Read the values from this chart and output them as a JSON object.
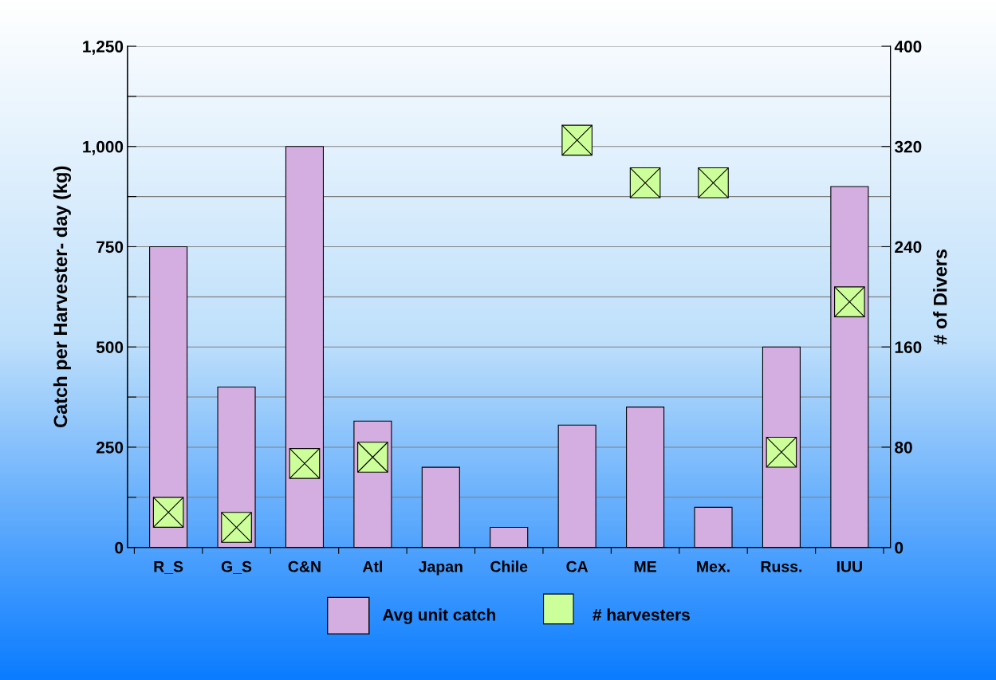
{
  "chart_data": {
    "type": "bar",
    "ylabel": "Catch per Harvester- day (kg)",
    "y2label": "# of Divers",
    "categories": [
      "R_S",
      "G_S",
      "C&N",
      "Atl",
      "Japan",
      "Chile",
      "CA",
      "ME",
      "Mex.",
      "Russ.",
      "IUU"
    ],
    "series": [
      {
        "name": "Avg unit catch",
        "color": "#d4aee0",
        "values": [
          750,
          400,
          1000,
          315,
          200,
          50,
          305,
          350,
          100,
          500,
          900
        ]
      },
      {
        "name": "# harvesters",
        "type": "scatter",
        "axis": "y2",
        "marker": "square",
        "color": "#ccff99",
        "values": [
          28,
          16,
          67,
          72,
          null,
          null,
          325,
          291,
          291,
          76,
          196
        ]
      }
    ],
    "ylim": [
      0,
      1250
    ],
    "yticks": [
      0,
      {
        "value": 125,
        "label": null
      },
      250,
      {
        "value": 375,
        "label": null
      },
      500,
      {
        "value": 625,
        "label": null
      },
      750,
      {
        "value": 875,
        "label": null
      },
      {
        "value": 1000,
        "label": "1,000"
      },
      {
        "value": 1125,
        "label": null
      },
      {
        "value": 1250,
        "label": "1,250"
      }
    ],
    "y2lim": [
      0,
      400
    ],
    "y2ticks": [
      0,
      80,
      160,
      240,
      320,
      400
    ],
    "grid": "y",
    "legend": "bottom"
  }
}
